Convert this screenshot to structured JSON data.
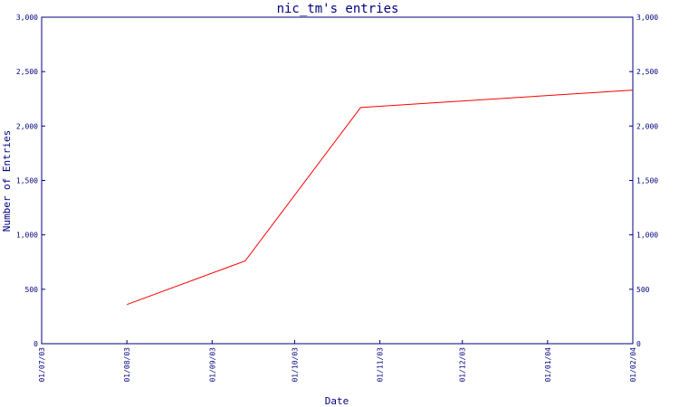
{
  "chart_data": {
    "type": "line",
    "title": "nic_tm's entries",
    "xlabel": "Date",
    "ylabel": "Number of Entries",
    "x_ticks": [
      "01/07/03",
      "01/08/03",
      "01/09/03",
      "01/10/03",
      "01/11/03",
      "01/12/03",
      "01/01/04",
      "01/02/04"
    ],
    "y_ticks": [
      "0",
      "500",
      "1,000",
      "1,500",
      "2,000",
      "2,500",
      "3,000"
    ],
    "y_ticks_right": [
      "0",
      "500",
      "1,000",
      "1,500",
      "2,000",
      "2,500",
      "3,000"
    ],
    "ylim": [
      0,
      3000
    ],
    "xlim": [
      "01/07/03",
      "01/02/04"
    ],
    "grid": false,
    "series": [
      {
        "color": "#ff0000",
        "points": [
          {
            "x": "01/08/03",
            "y": 360
          },
          {
            "x": "13/09/03",
            "y": 760
          },
          {
            "x": "25/10/03",
            "y": 2170
          },
          {
            "x": "01/02/04",
            "y": 2330
          }
        ]
      }
    ],
    "colors": {
      "axis": "#000080",
      "text": "#000080",
      "line": "#ff0000"
    }
  }
}
